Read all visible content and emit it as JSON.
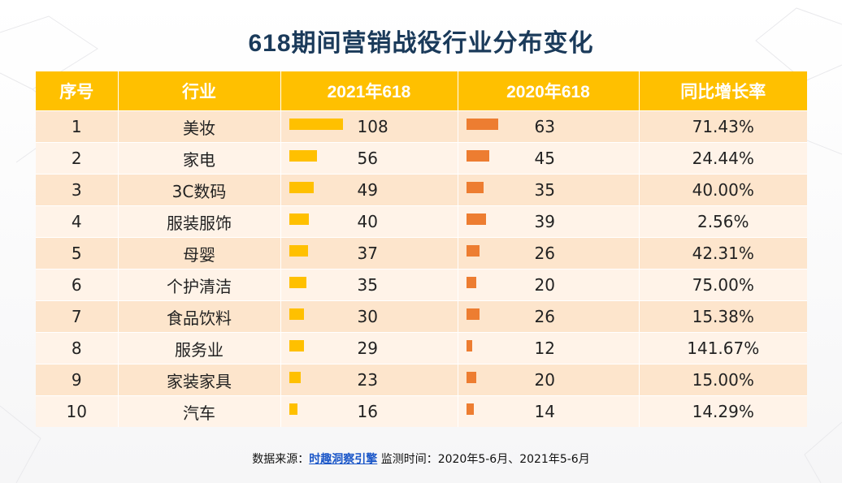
{
  "title": "618期间营销战役行业分布变化",
  "headers": [
    "序号",
    "行业",
    "2021年618",
    "2020年618",
    "同比增长率"
  ],
  "colors": {
    "header": "#ffc000",
    "bar_2021": "#ffc000",
    "bar_2020": "#ed7d31",
    "title": "#1a3a5a"
  },
  "rows": [
    {
      "rank": "1",
      "industry": "美妆",
      "v2021": "108",
      "v2020": "63",
      "growth": "71.43%"
    },
    {
      "rank": "2",
      "industry": "家电",
      "v2021": "56",
      "v2020": "45",
      "growth": "24.44%"
    },
    {
      "rank": "3",
      "industry": "3C数码",
      "v2021": "49",
      "v2020": "35",
      "growth": "40.00%"
    },
    {
      "rank": "4",
      "industry": "服装服饰",
      "v2021": "40",
      "v2020": "39",
      "growth": "2.56%"
    },
    {
      "rank": "5",
      "industry": "母婴",
      "v2021": "37",
      "v2020": "26",
      "growth": "42.31%"
    },
    {
      "rank": "6",
      "industry": "个护清洁",
      "v2021": "35",
      "v2020": "20",
      "growth": "75.00%"
    },
    {
      "rank": "7",
      "industry": "食品饮料",
      "v2021": "30",
      "v2020": "26",
      "growth": "15.38%"
    },
    {
      "rank": "8",
      "industry": "服务业",
      "v2021": "29",
      "v2020": "12",
      "growth": "141.67%"
    },
    {
      "rank": "9",
      "industry": "家装家具",
      "v2021": "23",
      "v2020": "20",
      "growth": "15.00%"
    },
    {
      "rank": "10",
      "industry": "汽车",
      "v2021": "16",
      "v2020": "14",
      "growth": "14.29%"
    }
  ],
  "chart_data": {
    "type": "table",
    "columns": [
      "序号",
      "行业",
      "2021年618",
      "2020年618",
      "同比增长率"
    ],
    "categories": [
      "美妆",
      "家电",
      "3C数码",
      "服装服饰",
      "母婴",
      "个护清洁",
      "食品饮料",
      "服务业",
      "家装家具",
      "汽车"
    ],
    "series": [
      {
        "name": "2021年618",
        "values": [
          108,
          56,
          49,
          40,
          37,
          35,
          30,
          29,
          23,
          16
        ]
      },
      {
        "name": "2020年618",
        "values": [
          63,
          45,
          35,
          39,
          26,
          20,
          26,
          12,
          20,
          14
        ]
      }
    ],
    "growth": [
      "71.43%",
      "24.44%",
      "40.00%",
      "2.56%",
      "42.31%",
      "75.00%",
      "15.38%",
      "141.67%",
      "15.00%",
      "14.29%"
    ]
  },
  "footer": {
    "prefix": "数据来源：",
    "source": "时趣洞察引擎",
    "suffix": " 监测时间：2020年5-6月、2021年5-6月"
  }
}
